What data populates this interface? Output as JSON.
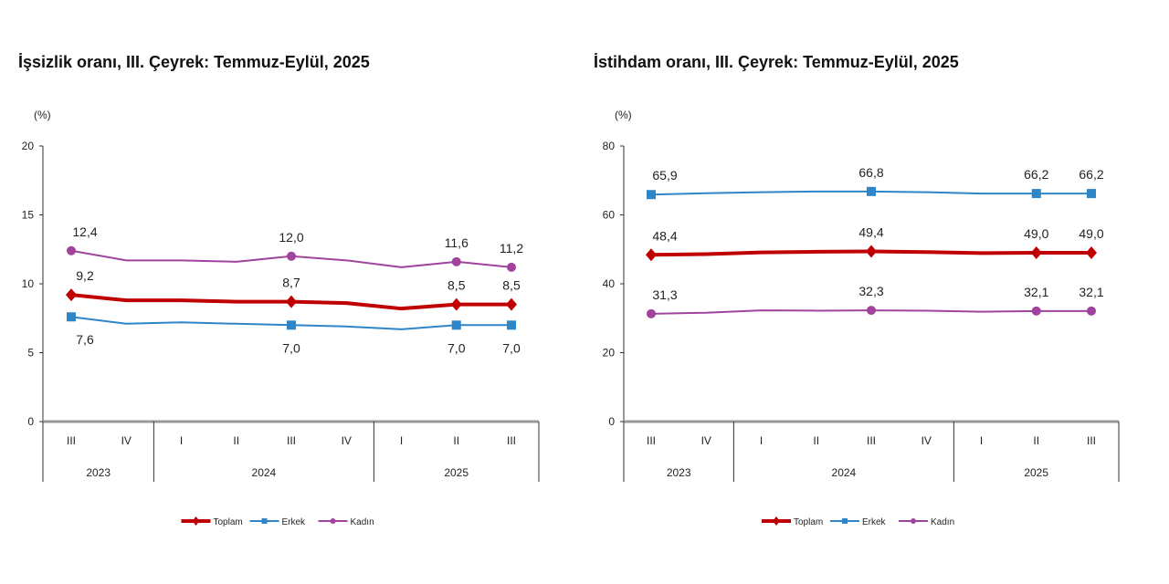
{
  "chart_data": [
    {
      "type": "line",
      "title": "İşsizlik oranı, III. Çeyrek: Temmuz-Eylül, 2025",
      "ylabel": "(%)",
      "ylim": [
        0,
        20
      ],
      "yticks": [
        "0",
        "5",
        "10",
        "15",
        "20"
      ],
      "categories": [
        "III",
        "IV",
        "I",
        "II",
        "III",
        "IV",
        "I",
        "II",
        "III"
      ],
      "years": [
        {
          "label": "2023",
          "span": 2
        },
        {
          "label": "2024",
          "span": 4
        },
        {
          "label": "2025",
          "span": 3
        }
      ],
      "labeled_points": [
        0,
        4,
        7,
        8
      ],
      "legend_position": "bottom",
      "series": [
        {
          "name": "Toplam",
          "color": "#c00000",
          "values": [
            9.2,
            8.8,
            8.8,
            8.7,
            8.7,
            8.6,
            8.2,
            8.5,
            8.5
          ],
          "labels": [
            "9,2",
            "8,7",
            "8,5",
            "8,5"
          ],
          "label_side": "above"
        },
        {
          "name": "Erkek",
          "color": "#2e86c8",
          "values": [
            7.6,
            7.1,
            7.2,
            7.1,
            7.0,
            6.9,
            6.7,
            7.0,
            7.0
          ],
          "labels": [
            "7,6",
            "7,0",
            "7,0",
            "7,0"
          ],
          "label_side": "below"
        },
        {
          "name": "Kadın",
          "color": "#a0439c",
          "values": [
            12.4,
            11.7,
            11.7,
            11.6,
            12.0,
            11.7,
            11.2,
            11.6,
            11.2
          ],
          "labels": [
            "12,4",
            "12,0",
            "11,6",
            "11,2"
          ],
          "label_side": "above"
        }
      ]
    },
    {
      "type": "line",
      "title": "İstihdam oranı, III. Çeyrek: Temmuz-Eylül, 2025",
      "ylabel": "(%)",
      "ylim": [
        0,
        80
      ],
      "yticks": [
        "0",
        "20",
        "40",
        "60",
        "80"
      ],
      "categories": [
        "III",
        "IV",
        "I",
        "II",
        "III",
        "IV",
        "I",
        "II",
        "III"
      ],
      "years": [
        {
          "label": "2023",
          "span": 2
        },
        {
          "label": "2024",
          "span": 4
        },
        {
          "label": "2025",
          "span": 3
        }
      ],
      "labeled_points": [
        0,
        4,
        7,
        8
      ],
      "legend_position": "bottom",
      "series": [
        {
          "name": "Toplam",
          "color": "#c00000",
          "values": [
            48.4,
            48.6,
            49.1,
            49.3,
            49.4,
            49.2,
            48.9,
            49.0,
            49.0
          ],
          "labels": [
            "48,4",
            "49,4",
            "49,0",
            "49,0"
          ],
          "label_side": "above"
        },
        {
          "name": "Erkek",
          "color": "#2e86c8",
          "values": [
            65.9,
            66.3,
            66.6,
            66.8,
            66.8,
            66.6,
            66.2,
            66.2,
            66.2
          ],
          "labels": [
            "65,9",
            "66,8",
            "66,2",
            "66,2"
          ],
          "label_side": "above"
        },
        {
          "name": "Kadın",
          "color": "#a0439c",
          "values": [
            31.3,
            31.6,
            32.3,
            32.2,
            32.3,
            32.2,
            31.9,
            32.1,
            32.1
          ],
          "labels": [
            "31,3",
            "32,3",
            "32,1",
            "32,1"
          ],
          "label_side": "above"
        }
      ]
    }
  ]
}
